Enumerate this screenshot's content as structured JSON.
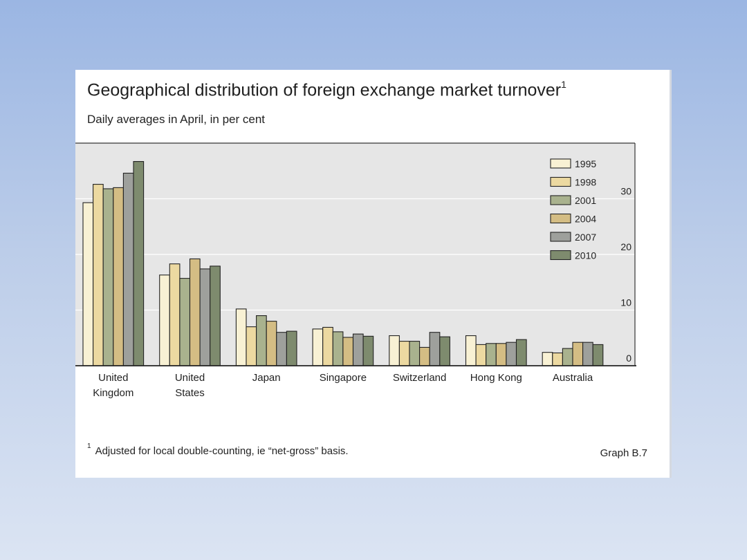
{
  "title": "Geographical distribution of foreign exchange market turnover",
  "title_note": "1",
  "subtitle": "Daily averages in April, in per cent",
  "footnote_mark": "1",
  "footnote": "Adjusted for local double-counting, ie “net-gross” basis.",
  "graph_id": "Graph B.7",
  "chart_data": {
    "type": "bar",
    "categories": [
      [
        "United",
        "Kingdom"
      ],
      [
        "United",
        "States"
      ],
      [
        "Japan"
      ],
      [
        "Singapore"
      ],
      [
        "Switzerland"
      ],
      [
        "Hong Kong"
      ],
      [
        "Australia"
      ]
    ],
    "series": [
      {
        "name": "1995",
        "color": "#f8f1d4",
        "values": [
          29.3,
          16.3,
          10.2,
          6.6,
          5.4,
          5.4,
          2.4
        ]
      },
      {
        "name": "1998",
        "color": "#ecd9a1",
        "values": [
          32.6,
          18.3,
          7.0,
          6.9,
          4.4,
          3.8,
          2.3
        ]
      },
      {
        "name": "2001",
        "color": "#a9b28e",
        "values": [
          31.8,
          15.7,
          9.0,
          6.1,
          4.4,
          4.0,
          3.1
        ]
      },
      {
        "name": "2004",
        "color": "#d4bd84",
        "values": [
          32.0,
          19.2,
          8.0,
          5.1,
          3.3,
          4.0,
          4.2
        ]
      },
      {
        "name": "2007",
        "color": "#9ea09c",
        "values": [
          34.6,
          17.4,
          6.0,
          5.7,
          6.0,
          4.2,
          4.2
        ]
      },
      {
        "name": "2010",
        "color": "#7e8b6e",
        "values": [
          36.7,
          17.9,
          6.2,
          5.3,
          5.2,
          4.7,
          3.8
        ]
      }
    ],
    "yticks": [
      0,
      10,
      20,
      30
    ],
    "ylim": [
      0,
      40
    ],
    "y_axis_side": "right",
    "grid": true,
    "plot_background": "#e6e6e6",
    "legend_position": "top-right"
  }
}
